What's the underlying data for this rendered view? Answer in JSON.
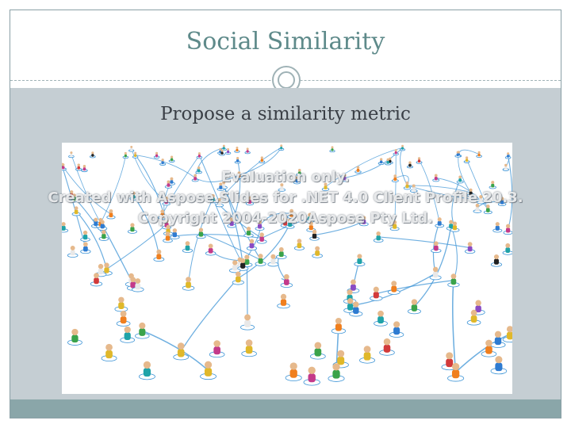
{
  "slide": {
    "title": "Social Similarity",
    "subtitle": "Propose a similarity metric"
  },
  "watermark": {
    "line1": "Evaluation only.",
    "line2": "Created with Aspose.Slides for .NET 4.0 Client Profile 20.3.",
    "line3": "Copyright 2004-2020Aspose Pty Ltd."
  },
  "colors": {
    "title": "#5e8a8a",
    "content_bg": "#c5ced3",
    "footer": "#8aa6a9",
    "network_link": "#3d94d6"
  },
  "image": {
    "icon": "people-network-image"
  }
}
